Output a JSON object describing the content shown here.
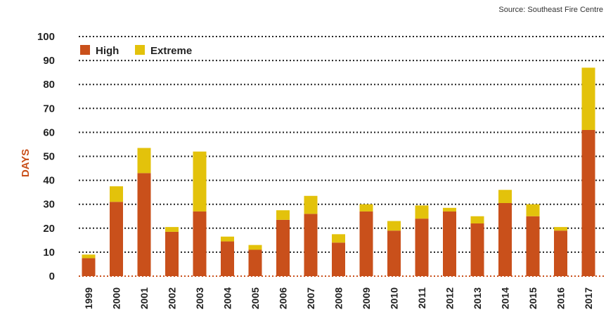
{
  "source": "Source: Southeast Fire Centre",
  "chart_data": {
    "type": "bar",
    "stacked": true,
    "categories": [
      "1999",
      "2000",
      "2001",
      "2002",
      "2003",
      "2004",
      "2005",
      "2006",
      "2007",
      "2008",
      "2009",
      "2010",
      "2011",
      "2012",
      "2013",
      "2014",
      "2015",
      "2016",
      "2017"
    ],
    "series": [
      {
        "name": "High",
        "color": "#c9501b",
        "values": [
          7.5,
          31,
          43,
          18.5,
          27,
          14.5,
          11,
          23.5,
          26,
          14,
          27,
          19,
          24,
          27,
          22,
          30.5,
          25,
          19,
          61
        ]
      },
      {
        "name": "Extreme",
        "color": "#e3c20b",
        "values": [
          1.5,
          6.5,
          10.5,
          2,
          25,
          2,
          2,
          4,
          7.5,
          3.5,
          3,
          4,
          5.5,
          1.5,
          3,
          5.5,
          5,
          1.5,
          26
        ]
      }
    ],
    "ylabel": "DAYS",
    "xlabel": "",
    "ylim": [
      0,
      100
    ],
    "yticks": [
      0,
      10,
      20,
      30,
      40,
      50,
      60,
      70,
      80,
      90,
      100
    ],
    "grid": "dotted-horizontal",
    "legend": "top-left"
  }
}
